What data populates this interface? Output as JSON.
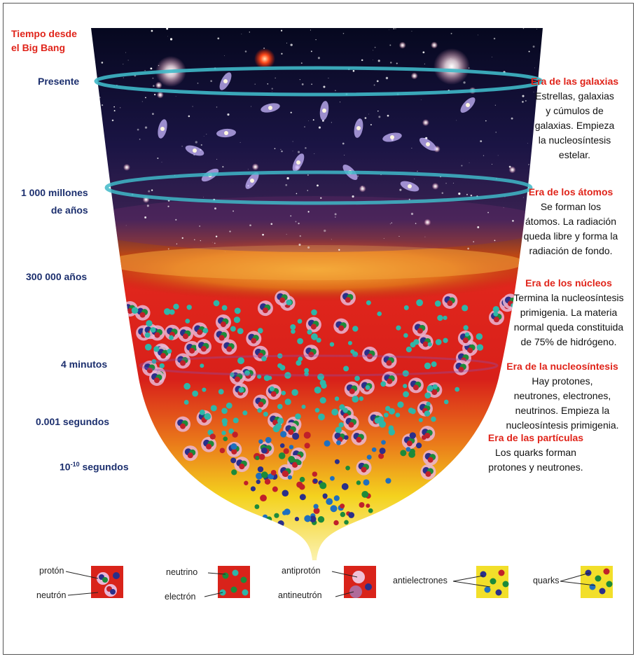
{
  "timeline": {
    "heading_line1": "Tiempo desde",
    "heading_line2": "el Big Bang",
    "present": "Presente",
    "billion_line1": "1 000 millones",
    "billion_line2": "de años",
    "years300k": "300 000 años",
    "minutes4": "4 minutos",
    "seconds001": "0.001 segundos",
    "tenpow_base": "10",
    "tenpow_exp": "-10",
    "tenpow_unit": " segundos"
  },
  "eras": {
    "galaxias": {
      "title": "Era de las galaxias",
      "lines": [
        "Estrellas, galaxias",
        "y cúmulos de",
        "galaxias. Empieza",
        "la nucleosíntesis",
        "estelar."
      ]
    },
    "atomos": {
      "title": "Era de los átomos",
      "lines": [
        "Se forman los",
        "átomos. La radiación",
        "queda libre y forma la",
        "radiación de fondo."
      ]
    },
    "nucleos": {
      "title": "Era de los núcleos",
      "lines": [
        "Termina la nucleosíntesis",
        "primigenia. La materia",
        "normal queda constituida",
        "de 75% de hidrógeno."
      ]
    },
    "nucleosintesis": {
      "title": "Era de la nucleosíntesis",
      "lines": [
        "Hay protones,",
        "neutrones, electrones,",
        "neutrinos. Empieza la",
        "nucleosíntesis primigenia."
      ]
    },
    "particulas": {
      "title": "Era de las partículas",
      "lines": [
        "Los quarks forman",
        "protones y neutrones."
      ]
    }
  },
  "legend": {
    "proton": "protón",
    "neutron": "neutrón",
    "neutrino": "neutrino",
    "electron": "electrón",
    "antiproton": "antiprotón",
    "antineutron": "antineutrón",
    "antielectrones": "antielectrones",
    "quarks": "quarks"
  },
  "colors": {
    "title_red": "#e0241a",
    "time_blue": "#1c2f6e",
    "ring_cyan": "#3fb8c8"
  }
}
